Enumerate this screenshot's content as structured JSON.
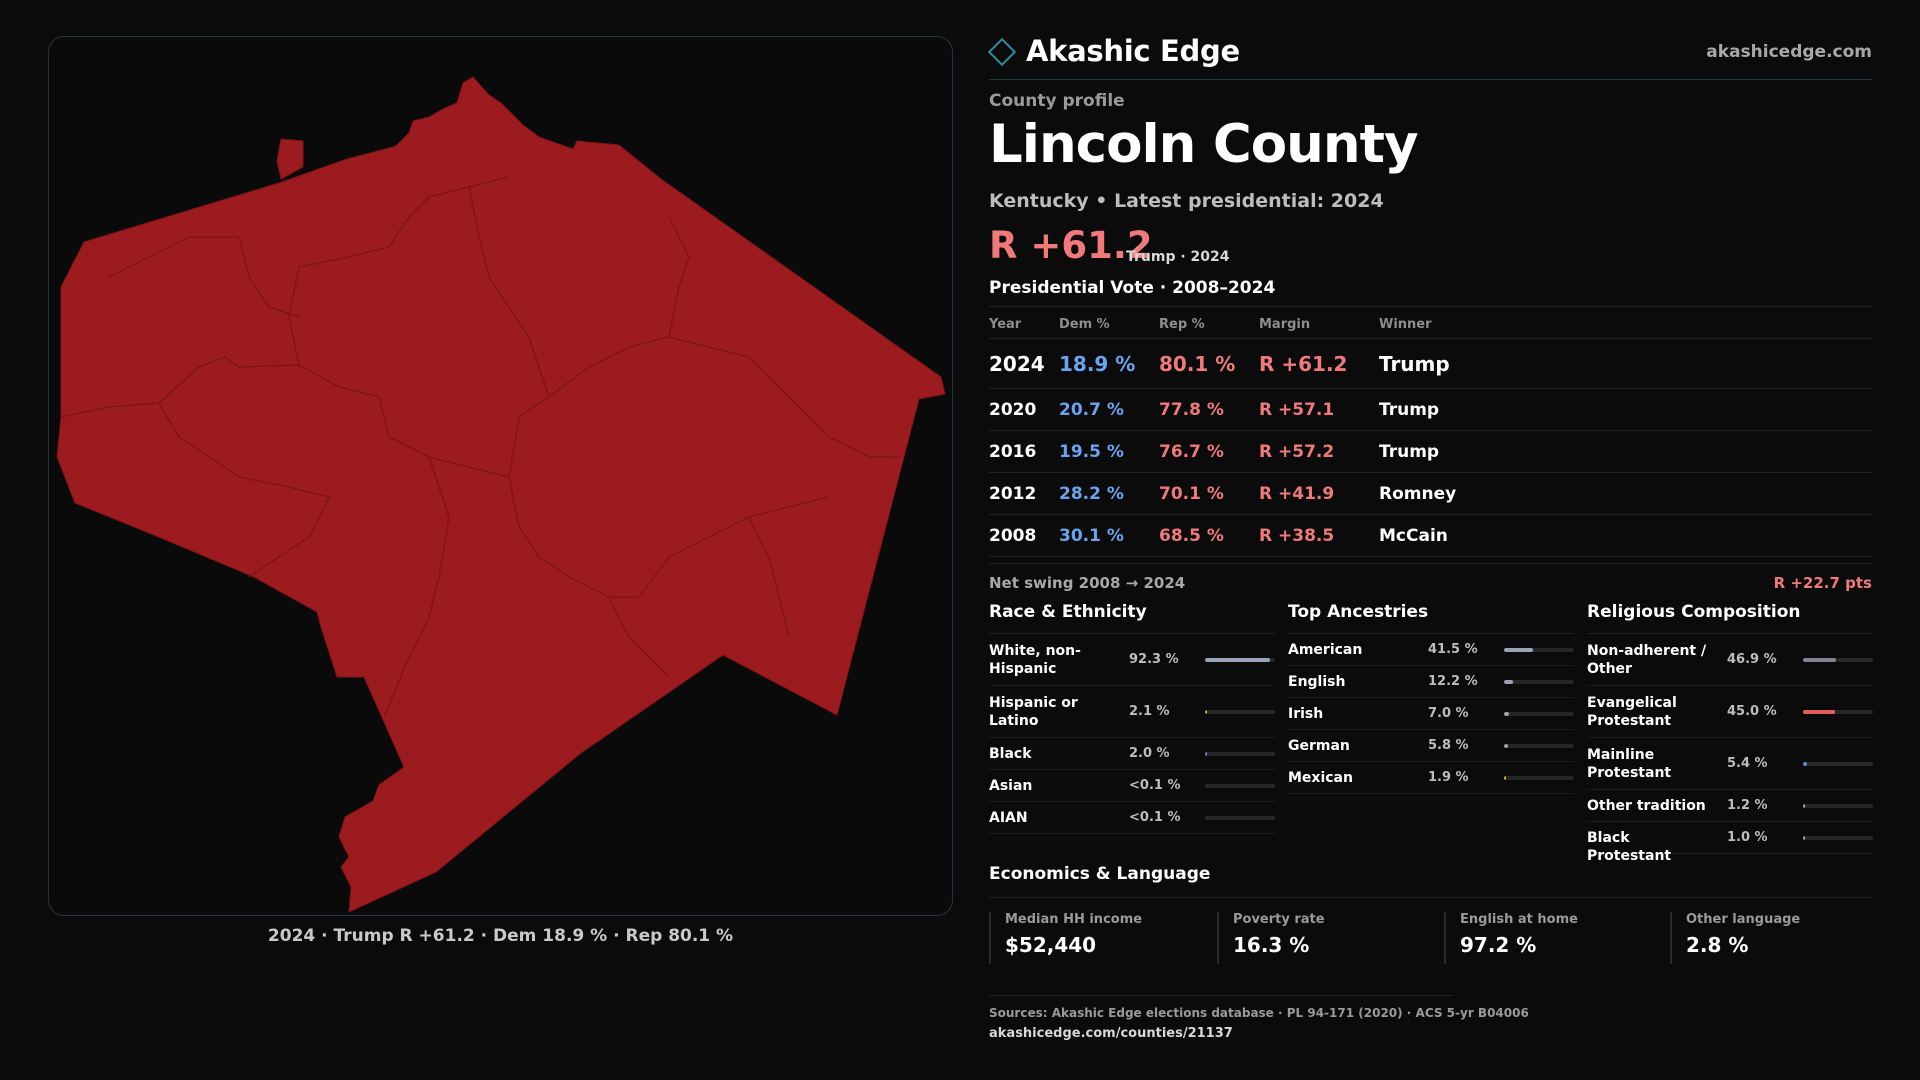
{
  "brand": {
    "name": "Akashic Edge",
    "url": "akashicedge.com"
  },
  "profile": {
    "eyebrow": "County profile",
    "county": "Lincoln County",
    "subtitle": "Kentucky • Latest presidential: 2024",
    "margin": "R +61.2",
    "margin_sub": "Trump · 2024"
  },
  "map": {
    "caption": "2024 · Trump R +61.2 · Dem 18.9 % · Rep 80.1 %",
    "fill_color": "#9b1b1e",
    "border_color": "#7c1417"
  },
  "vote": {
    "title": "Presidential Vote · 2008–2024",
    "headers": {
      "year": "Year",
      "dem": "Dem %",
      "rep": "Rep %",
      "margin": "Margin",
      "winner": "Winner"
    },
    "rows": [
      {
        "year": "2024",
        "dem": "18.9 %",
        "rep": "80.1 %",
        "margin": "R +61.2",
        "winner": "Trump"
      },
      {
        "year": "2020",
        "dem": "20.7 %",
        "rep": "77.8 %",
        "margin": "R +57.1",
        "winner": "Trump"
      },
      {
        "year": "2016",
        "dem": "19.5 %",
        "rep": "76.7 %",
        "margin": "R +57.2",
        "winner": "Trump"
      },
      {
        "year": "2012",
        "dem": "28.2 %",
        "rep": "70.1 %",
        "margin": "R +41.9",
        "winner": "Romney"
      },
      {
        "year": "2008",
        "dem": "30.1 %",
        "rep": "68.5 %",
        "margin": "R +38.5",
        "winner": "McCain"
      }
    ],
    "swing_label": "Net swing 2008 → 2024",
    "swing_value": "R +22.7 pts"
  },
  "race": {
    "title": "Race & Ethnicity",
    "rows": [
      {
        "label": "White, non-Hispanic",
        "value": "92.3 %",
        "fraction": 0.923,
        "color": "#9aa3b5"
      },
      {
        "label": "Hispanic or Latino",
        "value": "2.1 %",
        "fraction": 0.021,
        "color": "#d6a531"
      },
      {
        "label": "Black",
        "value": "2.0 %",
        "fraction": 0.02,
        "color": "#6a7fb5"
      },
      {
        "label": "Asian",
        "value": "<0.1 %",
        "fraction": 0.0,
        "color": "#9aa3b5"
      },
      {
        "label": "AIAN",
        "value": "<0.1 %",
        "fraction": 0.0,
        "color": "#9aa3b5"
      }
    ]
  },
  "ancestry": {
    "title": "Top Ancestries",
    "rows": [
      {
        "label": "American",
        "value": "41.5 %",
        "fraction": 0.415,
        "color": "#9aa3b5"
      },
      {
        "label": "English",
        "value": "12.2 %",
        "fraction": 0.122,
        "color": "#9aa3b5"
      },
      {
        "label": "Irish",
        "value": "7.0 %",
        "fraction": 0.07,
        "color": "#9aa3b5"
      },
      {
        "label": "German",
        "value": "5.8 %",
        "fraction": 0.058,
        "color": "#9aa3b5"
      },
      {
        "label": "Mexican",
        "value": "1.9 %",
        "fraction": 0.019,
        "color": "#d6a531"
      }
    ]
  },
  "religion": {
    "title": "Religious Composition",
    "rows": [
      {
        "label": "Non-adherent / Other",
        "value": "46.9 %",
        "fraction": 0.469,
        "color": "#7f8592"
      },
      {
        "label": "Evangelical Protestant",
        "value": "45.0 %",
        "fraction": 0.45,
        "color": "#e06060"
      },
      {
        "label": "Mainline Protestant",
        "value": "5.4 %",
        "fraction": 0.054,
        "color": "#5e8fe0"
      },
      {
        "label": "Other tradition",
        "value": "1.2 %",
        "fraction": 0.012,
        "color": "#9aa3b5"
      },
      {
        "label": "Black Protestant",
        "value": "1.0 %",
        "fraction": 0.01,
        "color": "#9aa3b5"
      }
    ]
  },
  "economics": {
    "title": "Economics & Language",
    "cards": [
      {
        "label": "Median HH income",
        "value": "$52,440"
      },
      {
        "label": "Poverty rate",
        "value": "16.3 %"
      },
      {
        "label": "English at home",
        "value": "97.2 %"
      },
      {
        "label": "Other language",
        "value": "2.8 %"
      }
    ]
  },
  "footer": {
    "sources": "Sources: Akashic Edge elections database · PL 94-171 (2020) · ACS 5-yr B04006",
    "url": "akashicedge.com/counties/21137"
  }
}
